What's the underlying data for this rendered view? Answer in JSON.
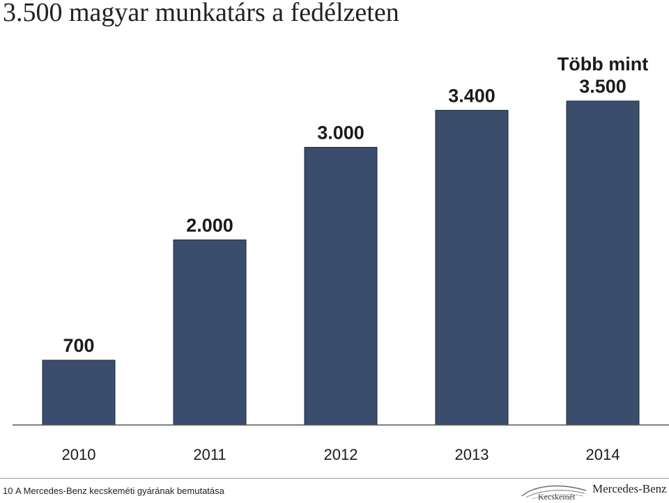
{
  "slide": {
    "title": "3.500 magyar munkatárs a fedélzeten"
  },
  "chart_data": {
    "type": "bar",
    "categories": [
      "2010",
      "2011",
      "2012",
      "2013",
      "2014"
    ],
    "values": [
      700,
      2000,
      3000,
      3400,
      3500
    ],
    "data_labels": [
      "700",
      "2.000",
      "3.000",
      "3.400",
      "3.500"
    ],
    "last_label_prefix": "Több mint",
    "title": "",
    "xlabel": "",
    "ylabel": "",
    "ylim": [
      0,
      3500
    ],
    "grid": false,
    "legend": "none",
    "bar_color": "#3a4d6c"
  },
  "footer": {
    "page_number": "10",
    "text": "A Mercedes-Benz kecskeméti gyárának bemutatása",
    "brand_name": "Mercedes-Benz",
    "brand_sub": "Kecskemét"
  }
}
